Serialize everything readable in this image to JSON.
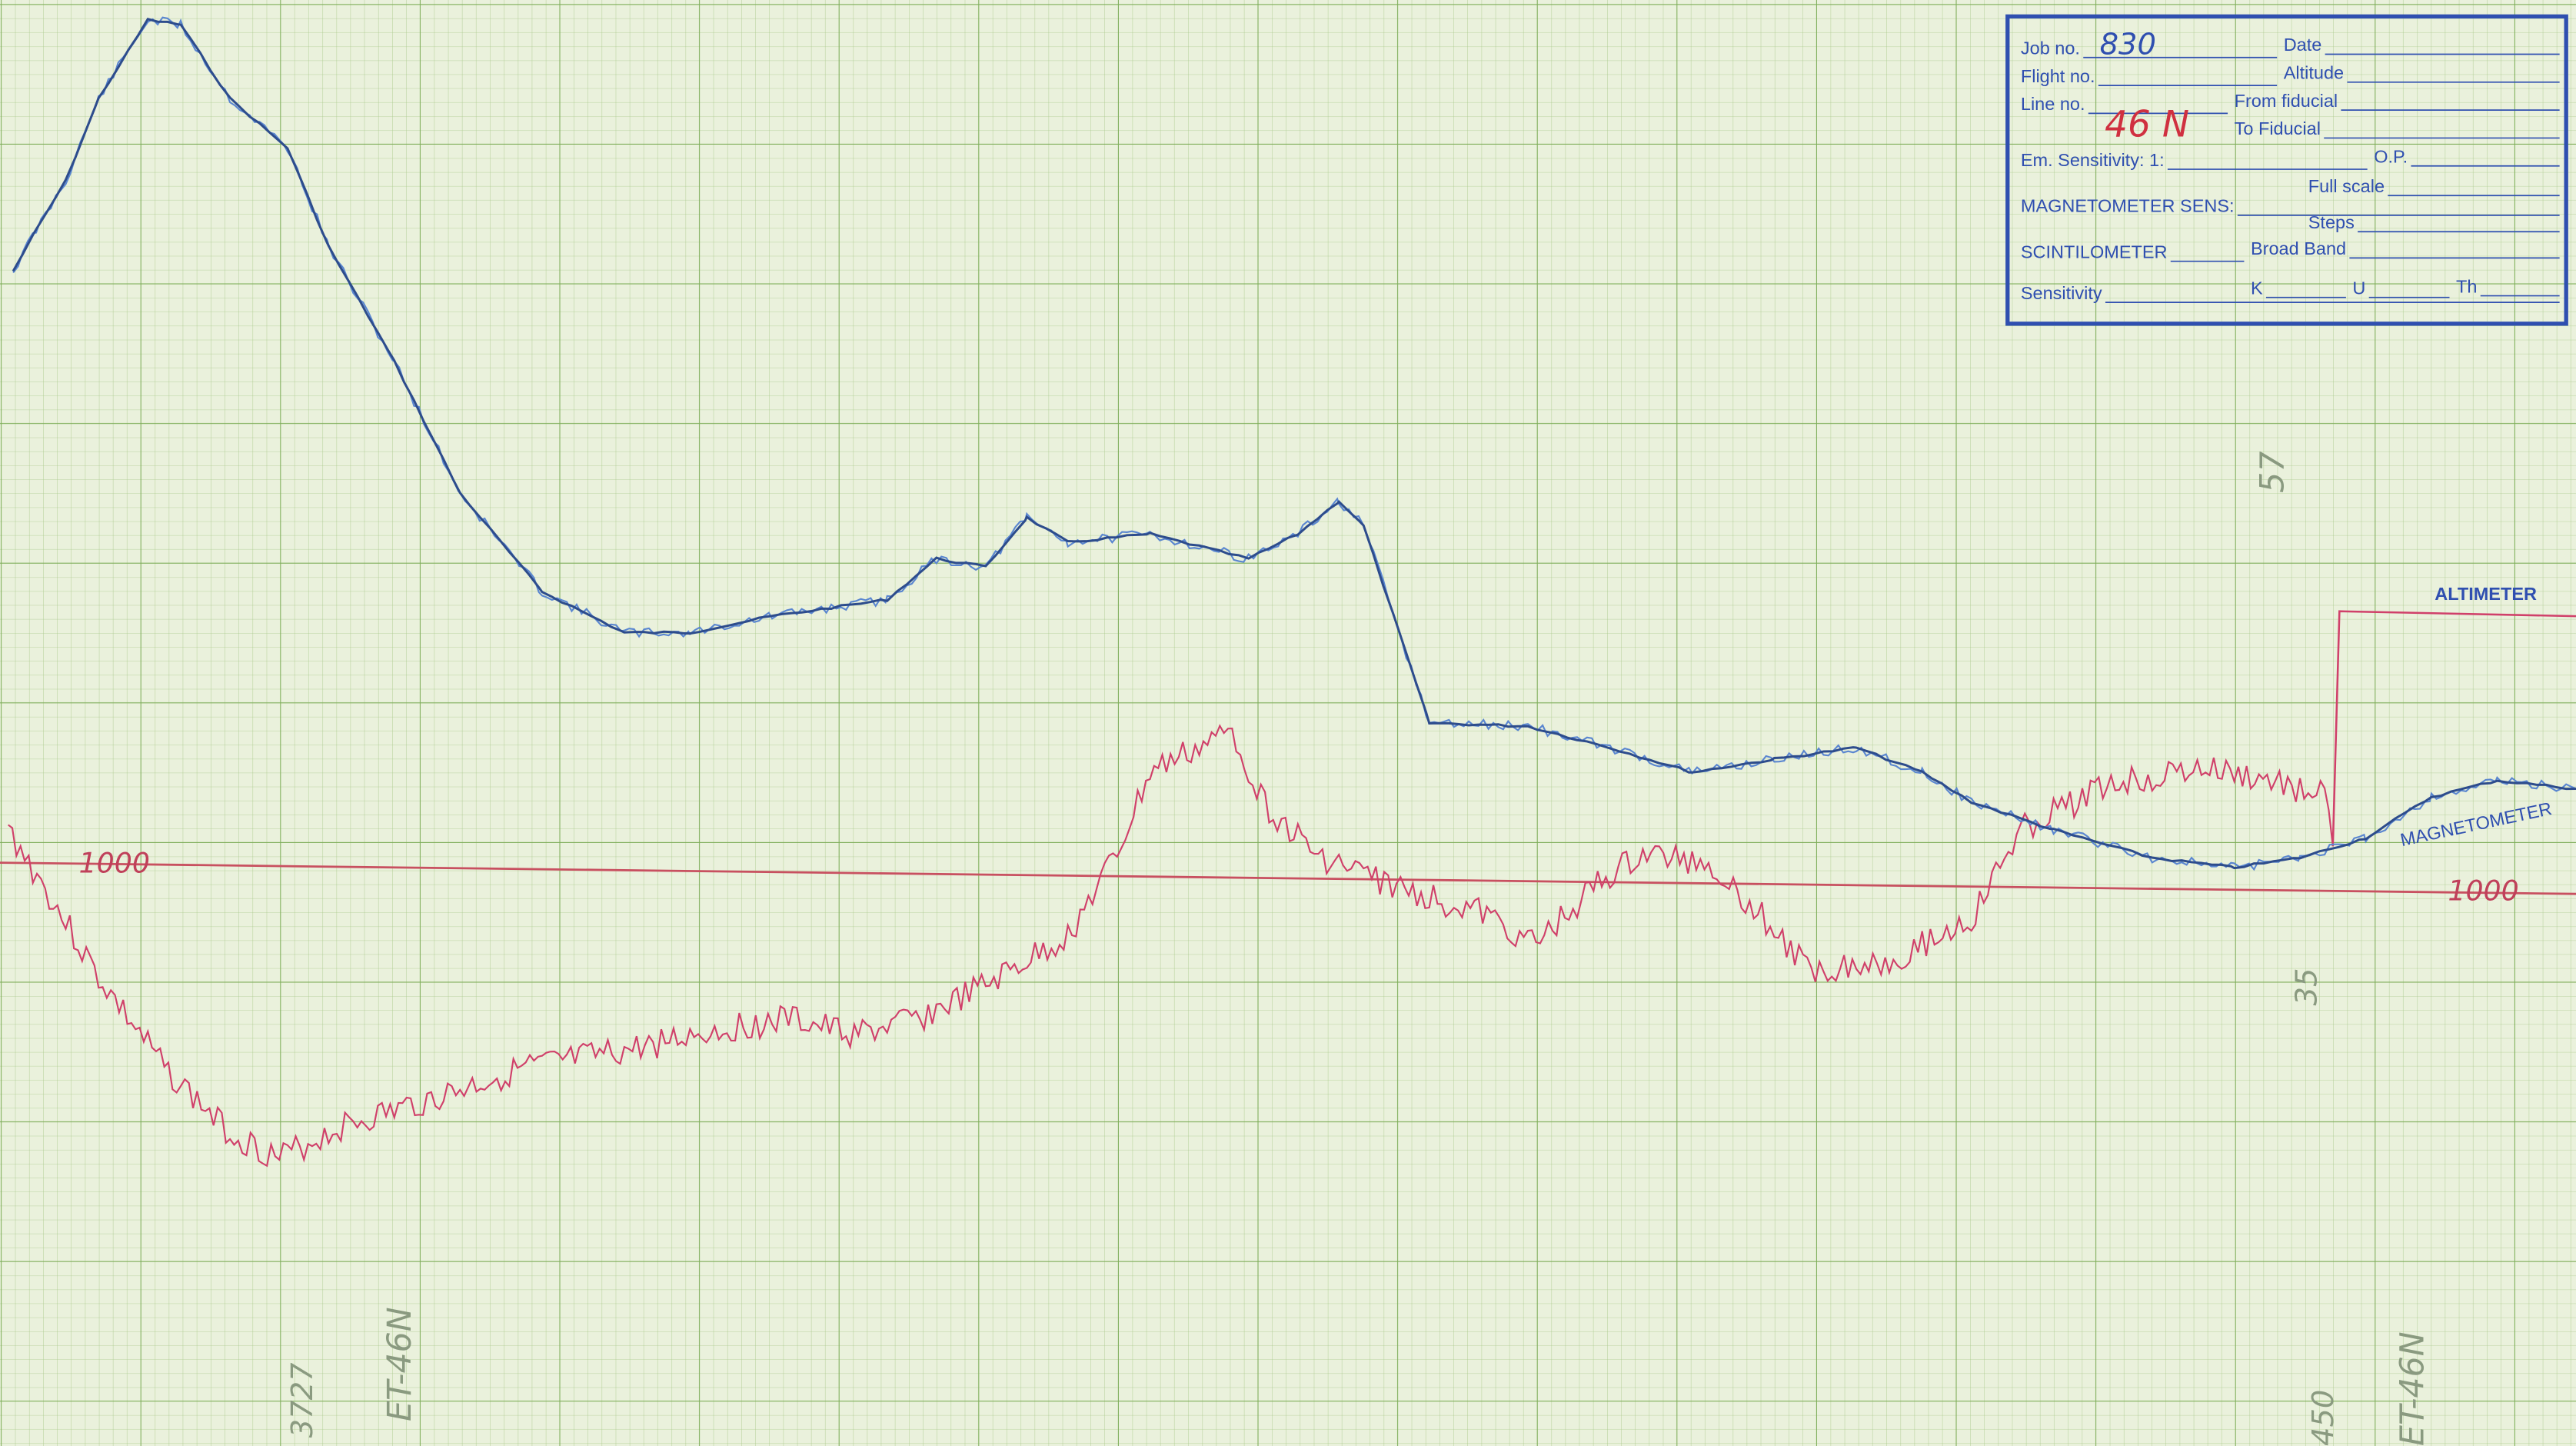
{
  "stamp": {
    "fields": [
      {
        "label": "Job no.",
        "value": "830"
      },
      {
        "label": "Date"
      },
      {
        "label": "Flight no."
      },
      {
        "label": "Altitude"
      },
      {
        "label": "Line no.",
        "value": "46 N"
      },
      {
        "label": "From fiducial"
      },
      {
        "label": "To Fiducial"
      },
      {
        "label": "Em. Sensitivity: 1:"
      },
      {
        "label": "O.P."
      },
      {
        "label": "Full scale"
      },
      {
        "label": "MAGNETOMETER SENS:"
      },
      {
        "label": "Steps"
      },
      {
        "label": "SCINTILOMETER"
      },
      {
        "label": "Broad Band"
      },
      {
        "label": "Sensitivity"
      },
      {
        "label": "K"
      },
      {
        "label": "U"
      },
      {
        "label": "Th"
      }
    ]
  },
  "traces": {
    "altimeter": "ALTIMETER",
    "magnetometer": "MAGNETOMETER"
  },
  "annotations": {
    "baseline_left": "1000",
    "baseline_right": "1000",
    "fiducial_left": "3727",
    "line_left": "ET-46N",
    "fiducial_right": "450",
    "line_right": "ET-46N",
    "note_top": "57",
    "note_mid": "35"
  }
}
